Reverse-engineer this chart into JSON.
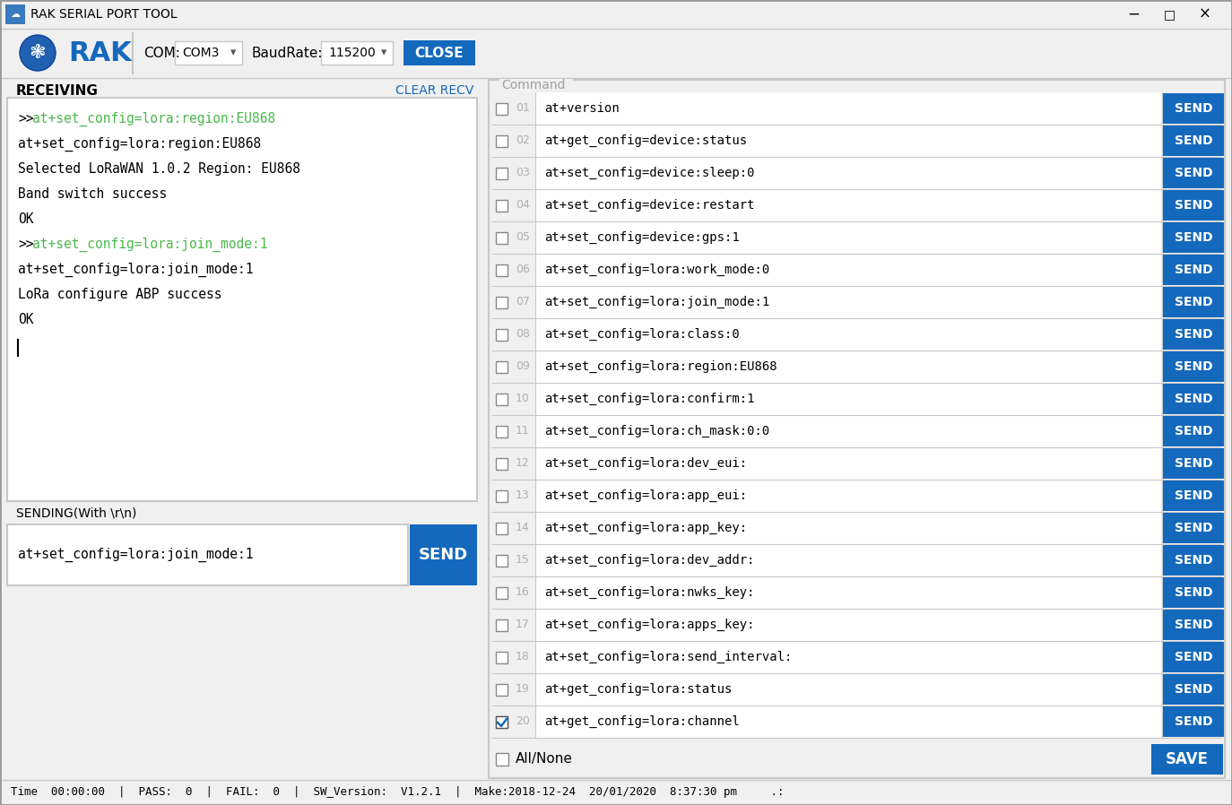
{
  "title_bar": "RAK SERIAL PORT TOOL",
  "com_label": "COM:",
  "com_value": "COM3",
  "baud_label": "BaudRate:",
  "baud_value": "115200",
  "close_btn_text": "CLOSE",
  "btn_blue": "#1569bd",
  "btn_fg": "#ffffff",
  "receiving_label": "RECEIVING",
  "clear_recv_text": "CLEAR RECV",
  "clear_recv_color": "#1569bd",
  "recv_lines": [
    {
      "text": ">>at+set_config=lora:region:EU868",
      "prefix_color": "#000000",
      "rest_color": "#4db84d",
      "has_arrow": true
    },
    {
      "text": "at+set_config=lora:region:EU868",
      "prefix_color": "#000000",
      "rest_color": "#000000",
      "has_arrow": false
    },
    {
      "text": "Selected LoRaWAN 1.0.2 Region: EU868",
      "prefix_color": "#000000",
      "rest_color": "#000000",
      "has_arrow": false
    },
    {
      "text": "Band switch success",
      "prefix_color": "#000000",
      "rest_color": "#000000",
      "has_arrow": false
    },
    {
      "text": "OK",
      "prefix_color": "#000000",
      "rest_color": "#000000",
      "has_arrow": false
    },
    {
      "text": ">>at+set_config=lora:join_mode:1",
      "prefix_color": "#000000",
      "rest_color": "#4db84d",
      "has_arrow": true
    },
    {
      "text": "at+set_config=lora:join_mode:1",
      "prefix_color": "#000000",
      "rest_color": "#000000",
      "has_arrow": false
    },
    {
      "text": "LoRa configure ABP success",
      "prefix_color": "#000000",
      "rest_color": "#000000",
      "has_arrow": false
    },
    {
      "text": "OK",
      "prefix_color": "#000000",
      "rest_color": "#000000",
      "has_arrow": false
    }
  ],
  "sending_label": "SENDING(With \\r\\n)",
  "send_input_text": "at+set_config=lora:join_mode:1",
  "send_btn_text": "SEND",
  "command_label": "Command",
  "commands": [
    {
      "num": "01",
      "text": "at+version",
      "checked": false
    },
    {
      "num": "02",
      "text": "at+get_config=device:status",
      "checked": false
    },
    {
      "num": "03",
      "text": "at+set_config=device:sleep:0",
      "checked": false
    },
    {
      "num": "04",
      "text": "at+set_config=device:restart",
      "checked": false
    },
    {
      "num": "05",
      "text": "at+set_config=device:gps:1",
      "checked": false
    },
    {
      "num": "06",
      "text": "at+set_config=lora:work_mode:0",
      "checked": false
    },
    {
      "num": "07",
      "text": "at+set_config=lora:join_mode:1",
      "checked": false
    },
    {
      "num": "08",
      "text": "at+set_config=lora:class:0",
      "checked": false
    },
    {
      "num": "09",
      "text": "at+set_config=lora:region:EU868",
      "checked": false
    },
    {
      "num": "10",
      "text": "at+set_config=lora:confirm:1",
      "checked": false
    },
    {
      "num": "11",
      "text": "at+set_config=lora:ch_mask:0:0",
      "checked": false
    },
    {
      "num": "12",
      "text": "at+set_config=lora:dev_eui:",
      "checked": false
    },
    {
      "num": "13",
      "text": "at+set_config=lora:app_eui:",
      "checked": false
    },
    {
      "num": "14",
      "text": "at+set_config=lora:app_key:",
      "checked": false
    },
    {
      "num": "15",
      "text": "at+set_config=lora:dev_addr:",
      "checked": false
    },
    {
      "num": "16",
      "text": "at+set_config=lora:nwks_key:",
      "checked": false
    },
    {
      "num": "17",
      "text": "at+set_config=lora:apps_key:",
      "checked": false
    },
    {
      "num": "18",
      "text": "at+set_config=lora:send_interval:",
      "checked": false
    },
    {
      "num": "19",
      "text": "at+get_config=lora:status",
      "checked": false
    },
    {
      "num": "20",
      "text": "at+get_config=lora:channel",
      "checked": true
    }
  ],
  "all_none_text": "All/None",
  "save_btn_text": "SAVE",
  "status_bar": "Time  00:00:00  |  PASS:  0  |  FAIL:  0  |  SW_Version:  V1.2.1  |  Make:2018-12-24  20/01/2020  8:37:30 pm     .:",
  "bg_gray": "#f0f0f0",
  "bg_white": "#ffffff",
  "border_light": "#c8c8c8",
  "border_dark": "#888888",
  "text_gray": "#a0a0a0",
  "num_gray": "#b0b0b0"
}
